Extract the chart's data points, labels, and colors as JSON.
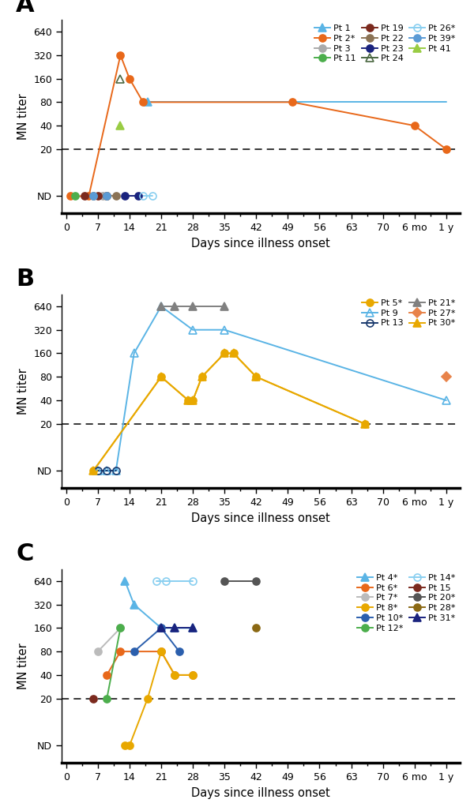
{
  "x_ticks_A": [
    0,
    7,
    14,
    21,
    28,
    35,
    42,
    49,
    56,
    63,
    70,
    77,
    84
  ],
  "x_labels_A": [
    "0",
    "7",
    "14",
    "21",
    "28",
    "35",
    "42",
    "49",
    "56",
    "63",
    "70",
    "6 mo",
    "1 y"
  ],
  "x_ticks_B": [
    0,
    7,
    14,
    21,
    28,
    35,
    42,
    49,
    56,
    63,
    70,
    77,
    84
  ],
  "x_labels_B": [
    "0",
    "7",
    "14",
    "21",
    "28",
    "35",
    "42",
    "49",
    "56",
    "63",
    "70",
    "6 mo",
    "1 y"
  ],
  "x_ticks_C": [
    0,
    7,
    14,
    21,
    28,
    35,
    42,
    49,
    56,
    63,
    70,
    77,
    84
  ],
  "x_labels_C": [
    "0",
    "7",
    "14",
    "21",
    "28",
    "35",
    "42",
    "49",
    "56",
    "63",
    "70",
    "6 mo",
    "1 y"
  ],
  "xlim_A": [
    -1,
    87
  ],
  "xlim_B": [
    -1,
    87
  ],
  "xlim_C": [
    -1,
    87
  ],
  "x_6mo": 77,
  "x_1y": 84,
  "ytick_positions": [
    5,
    20,
    40,
    80,
    160,
    320,
    640
  ],
  "ytick_labels": [
    "ND",
    "20",
    "40",
    "80",
    "160",
    "320",
    "640"
  ],
  "ylim": [
    3,
    900
  ],
  "nd_value": 5,
  "dashed_line_y": 20,
  "panel_A": {
    "series": [
      {
        "label": "Pt 1",
        "color": "#5ab4e5",
        "marker": "^",
        "filled": true,
        "points_x": [
          18
        ],
        "points_y": [
          80
        ],
        "line_x": [
          18,
          84
        ],
        "line_y": [
          80,
          80
        ]
      },
      {
        "label": "Pt 2*",
        "color": "#e8681a",
        "marker": "o",
        "filled": true,
        "points_x": [
          1,
          5,
          12,
          14,
          17,
          50,
          77,
          84
        ],
        "points_y": [
          5,
          5,
          320,
          160,
          80,
          80,
          40,
          20
        ],
        "line_x": [
          1,
          5,
          12,
          14,
          17,
          50,
          77,
          84
        ],
        "line_y": [
          5,
          5,
          320,
          160,
          80,
          80,
          40,
          20
        ]
      },
      {
        "label": "Pt 3",
        "color": "#aaaaaa",
        "marker": "o",
        "filled": true,
        "points_x": [
          8
        ],
        "points_y": [
          5
        ],
        "line_x": null,
        "line_y": null
      },
      {
        "label": "Pt 11",
        "color": "#4cae4c",
        "marker": "o",
        "filled": true,
        "points_x": [
          2
        ],
        "points_y": [
          5
        ],
        "line_x": null,
        "line_y": null
      },
      {
        "label": "Pt 19",
        "color": "#7b2a1e",
        "marker": "o",
        "filled": true,
        "points_x": [
          4,
          7,
          9
        ],
        "points_y": [
          5,
          5,
          5
        ],
        "line_x": [
          4,
          7,
          9
        ],
        "line_y": [
          5,
          5,
          5
        ]
      },
      {
        "label": "Pt 22",
        "color": "#8b7355",
        "marker": "o",
        "filled": true,
        "points_x": [
          6,
          9,
          11
        ],
        "points_y": [
          5,
          5,
          5
        ],
        "line_x": [
          6,
          9,
          11
        ],
        "line_y": [
          5,
          5,
          5
        ]
      },
      {
        "label": "Pt 23",
        "color": "#1a237e",
        "marker": "o",
        "filled": true,
        "points_x": [
          13,
          16
        ],
        "points_y": [
          5,
          5
        ],
        "line_x": [
          13,
          16
        ],
        "line_y": [
          5,
          5
        ]
      },
      {
        "label": "Pt 24",
        "color": "#4a6741",
        "marker": "^",
        "filled": false,
        "points_x": [
          12
        ],
        "points_y": [
          160
        ],
        "line_x": null,
        "line_y": null
      },
      {
        "label": "Pt 26*",
        "color": "#89cff0",
        "marker": "o",
        "filled": false,
        "points_x": [
          17,
          19
        ],
        "points_y": [
          5,
          5
        ],
        "line_x": [
          17,
          19
        ],
        "line_y": [
          5,
          5
        ]
      },
      {
        "label": "Pt 39*",
        "color": "#5b9bd5",
        "marker": "o",
        "filled": true,
        "points_x": [
          6,
          9
        ],
        "points_y": [
          5,
          5
        ],
        "line_x": [
          6,
          9
        ],
        "line_y": [
          5,
          5
        ]
      },
      {
        "label": "Pt 41",
        "color": "#99cc44",
        "marker": "^",
        "filled": true,
        "points_x": [
          12
        ],
        "points_y": [
          40
        ],
        "line_x": null,
        "line_y": null
      }
    ]
  },
  "panel_B": {
    "series": [
      {
        "label": "Pt 5*",
        "color": "#e8a800",
        "marker": "o",
        "filled": true,
        "points_x": [
          6,
          21,
          27,
          28,
          30,
          35,
          37,
          42,
          66
        ],
        "points_y": [
          5,
          80,
          40,
          40,
          80,
          160,
          160,
          80,
          20
        ],
        "line_x": [
          6,
          21,
          27,
          28,
          30,
          35,
          37,
          42,
          66
        ],
        "line_y": [
          5,
          80,
          40,
          40,
          80,
          160,
          160,
          80,
          20
        ]
      },
      {
        "label": "Pt 9",
        "color": "#5ab4e5",
        "marker": "^",
        "filled": false,
        "points_x": [
          7,
          9,
          11,
          15,
          21,
          28,
          35,
          84
        ],
        "points_y": [
          5,
          5,
          5,
          160,
          640,
          320,
          320,
          40
        ],
        "line_x": [
          7,
          9,
          11,
          15,
          21,
          28,
          35,
          84
        ],
        "line_y": [
          5,
          5,
          5,
          160,
          640,
          320,
          320,
          40
        ]
      },
      {
        "label": "Pt 13",
        "color": "#1a3a6e",
        "marker": "o",
        "filled": false,
        "points_x": [
          7,
          9,
          11
        ],
        "points_y": [
          5,
          5,
          5
        ],
        "line_x": [
          7,
          9,
          11
        ],
        "line_y": [
          5,
          5,
          5
        ]
      },
      {
        "label": "Pt 21*",
        "color": "#808080",
        "marker": "^",
        "filled": true,
        "points_x": [
          21,
          24,
          28,
          35
        ],
        "points_y": [
          640,
          640,
          640,
          640
        ],
        "line_x": [
          21,
          24,
          28,
          35
        ],
        "line_y": [
          640,
          640,
          640,
          640
        ]
      },
      {
        "label": "Pt 27*",
        "color": "#e8834a",
        "marker": "D",
        "filled": true,
        "points_x": [
          84
        ],
        "points_y": [
          80
        ],
        "line_x": null,
        "line_y": null
      },
      {
        "label": "Pt 30*",
        "color": "#e8a800",
        "marker": "^",
        "filled": true,
        "points_x": [
          6,
          21,
          27,
          28,
          30,
          35,
          37,
          42,
          66
        ],
        "points_y": [
          5,
          80,
          40,
          40,
          80,
          160,
          160,
          80,
          20
        ],
        "line_x": [
          6,
          21,
          27,
          28,
          30,
          35,
          37,
          42,
          66
        ],
        "line_y": [
          5,
          80,
          40,
          40,
          80,
          160,
          160,
          80,
          20
        ]
      }
    ]
  },
  "panel_C": {
    "series": [
      {
        "label": "Pt 4*",
        "color": "#5ab4e5",
        "marker": "^",
        "filled": true,
        "points_x": [
          13,
          15,
          21,
          24,
          28
        ],
        "points_y": [
          640,
          320,
          160,
          160,
          160
        ],
        "line_x": [
          13,
          15,
          21,
          24,
          28
        ],
        "line_y": [
          640,
          320,
          160,
          160,
          160
        ]
      },
      {
        "label": "Pt 6*",
        "color": "#e8681a",
        "marker": "o",
        "filled": true,
        "points_x": [
          9,
          12,
          21,
          24,
          28
        ],
        "points_y": [
          40,
          80,
          80,
          40,
          40
        ],
        "line_x": [
          9,
          12,
          21,
          24,
          28
        ],
        "line_y": [
          40,
          80,
          80,
          40,
          40
        ]
      },
      {
        "label": "Pt 7*",
        "color": "#bbbbbb",
        "marker": "o",
        "filled": true,
        "points_x": [
          7,
          12
        ],
        "points_y": [
          80,
          160
        ],
        "line_x": [
          7,
          12
        ],
        "line_y": [
          80,
          160
        ]
      },
      {
        "label": "Pt 8*",
        "color": "#e8a800",
        "marker": "o",
        "filled": true,
        "points_x": [
          13,
          14,
          18,
          21,
          24,
          28
        ],
        "points_y": [
          5,
          5,
          20,
          80,
          40,
          40
        ],
        "line_x": [
          13,
          14,
          18,
          21,
          24,
          28
        ],
        "line_y": [
          5,
          5,
          20,
          80,
          40,
          40
        ]
      },
      {
        "label": "Pt 10*",
        "color": "#2b5fad",
        "marker": "o",
        "filled": true,
        "points_x": [
          15,
          21,
          25
        ],
        "points_y": [
          80,
          160,
          80
        ],
        "line_x": [
          15,
          21,
          25
        ],
        "line_y": [
          80,
          160,
          80
        ]
      },
      {
        "label": "Pt 12*",
        "color": "#4cae4c",
        "marker": "o",
        "filled": true,
        "points_x": [
          9,
          12
        ],
        "points_y": [
          20,
          160
        ],
        "line_x": [
          9,
          12
        ],
        "line_y": [
          20,
          160
        ]
      },
      {
        "label": "Pt 14*",
        "color": "#89cff0",
        "marker": "o",
        "filled": false,
        "points_x": [
          20,
          22,
          28
        ],
        "points_y": [
          640,
          640,
          640
        ],
        "line_x": [
          20,
          22,
          28
        ],
        "line_y": [
          640,
          640,
          640
        ]
      },
      {
        "label": "Pt 15",
        "color": "#7b2a1e",
        "marker": "o",
        "filled": true,
        "points_x": [
          6
        ],
        "points_y": [
          20
        ],
        "line_x": null,
        "line_y": null
      },
      {
        "label": "Pt 20*",
        "color": "#555555",
        "marker": "o",
        "filled": true,
        "points_x": [
          35,
          42
        ],
        "points_y": [
          640,
          640
        ],
        "line_x": [
          35,
          42
        ],
        "line_y": [
          640,
          640
        ]
      },
      {
        "label": "Pt 28*",
        "color": "#8b6914",
        "marker": "o",
        "filled": true,
        "points_x": [
          42
        ],
        "points_y": [
          160
        ],
        "line_x": null,
        "line_y": null
      },
      {
        "label": "Pt 31*",
        "color": "#1a237e",
        "marker": "^",
        "filled": true,
        "points_x": [
          21,
          24,
          28
        ],
        "points_y": [
          160,
          160,
          160
        ],
        "line_x": [
          21,
          24,
          28
        ],
        "line_y": [
          160,
          160,
          160
        ]
      }
    ]
  }
}
